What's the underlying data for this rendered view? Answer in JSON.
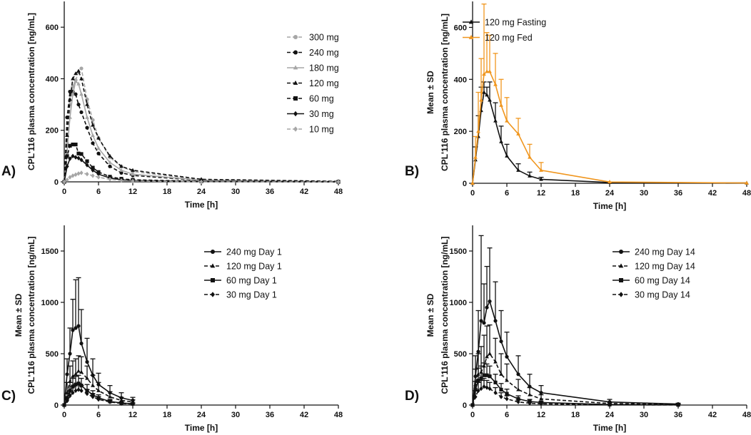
{
  "chart_data": [
    {
      "type": "line",
      "panel_label": "A)",
      "xlabel": "Time [h]",
      "ylabel": "CPL'116 plasma concentration [ng/mL]",
      "ylabel2": "",
      "xlim": [
        0,
        48
      ],
      "ylim": [
        0,
        700
      ],
      "xticks": [
        0,
        6,
        12,
        18,
        24,
        30,
        36,
        42,
        48
      ],
      "yticks": [
        0,
        200,
        400,
        600
      ],
      "error_bars": false,
      "series": [
        {
          "name": "300 mg",
          "color": "#a6a6a6",
          "dash": "dash",
          "marker": "circle",
          "x": [
            0,
            0.5,
            1,
            1.5,
            2,
            2.5,
            3,
            4,
            5,
            6,
            8,
            10,
            12,
            24,
            48
          ],
          "y": [
            0,
            150,
            300,
            370,
            395,
            425,
            440,
            320,
            240,
            170,
            95,
            60,
            40,
            8,
            2
          ]
        },
        {
          "name": "240 mg",
          "color": "#111111",
          "dash": "dash",
          "marker": "circle",
          "x": [
            0,
            0.5,
            1,
            1.5,
            2,
            2.5,
            3,
            4,
            5,
            6,
            8,
            10,
            12,
            24,
            48
          ],
          "y": [
            0,
            250,
            350,
            350,
            340,
            300,
            270,
            210,
            150,
            110,
            60,
            35,
            25,
            5,
            1
          ]
        },
        {
          "name": "180 mg",
          "color": "#a6a6a6",
          "dash": "solid",
          "marker": "triangle",
          "x": [
            0,
            0.5,
            1,
            1.5,
            2,
            2.5,
            3,
            4,
            5,
            6,
            8,
            10,
            12,
            24,
            48
          ],
          "y": [
            0,
            120,
            250,
            340,
            390,
            380,
            340,
            250,
            180,
            130,
            75,
            45,
            30,
            6,
            1
          ]
        },
        {
          "name": "120 mg",
          "color": "#111111",
          "dash": "dash",
          "marker": "triangle",
          "x": [
            0,
            0.5,
            1,
            1.5,
            2,
            2.5,
            3,
            4,
            5,
            6,
            8,
            10,
            12,
            24,
            48
          ],
          "y": [
            0,
            180,
            320,
            400,
            420,
            430,
            400,
            300,
            220,
            170,
            100,
            60,
            45,
            10,
            2
          ]
        },
        {
          "name": "60 mg",
          "color": "#111111",
          "dash": "dash",
          "marker": "square",
          "x": [
            0,
            0.5,
            1,
            1.5,
            2,
            2.5,
            3,
            4,
            5,
            6,
            8,
            10,
            12,
            24,
            48
          ],
          "y": [
            0,
            100,
            140,
            145,
            145,
            110,
            108,
            80,
            55,
            38,
            20,
            12,
            8,
            2,
            0
          ]
        },
        {
          "name": "30 mg",
          "color": "#111111",
          "dash": "solid",
          "marker": "diamond",
          "x": [
            0,
            0.5,
            1,
            1.5,
            2,
            2.5,
            3,
            4,
            5,
            6,
            8,
            10,
            12,
            24,
            48
          ],
          "y": [
            0,
            60,
            90,
            100,
            95,
            92,
            85,
            65,
            45,
            30,
            15,
            8,
            5,
            1,
            0
          ]
        },
        {
          "name": "10 mg",
          "color": "#a6a6a6",
          "dash": "dash",
          "marker": "diamond",
          "x": [
            0,
            0.5,
            1,
            1.5,
            2,
            2.5,
            3,
            4,
            5,
            6,
            8,
            10,
            12,
            24,
            48
          ],
          "y": [
            0,
            8,
            18,
            24,
            28,
            32,
            35,
            30,
            24,
            18,
            10,
            5,
            3,
            0,
            0
          ]
        }
      ]
    },
    {
      "type": "line",
      "panel_label": "B)",
      "xlabel": "Time [h]",
      "ylabel": "CPL'116 plasma concentration [ng/mL]",
      "ylabel2": "Mean ± SD",
      "xlim": [
        0,
        48
      ],
      "ylim": [
        0,
        700
      ],
      "xticks": [
        0,
        6,
        12,
        18,
        24,
        30,
        36,
        42,
        48
      ],
      "yticks": [
        0,
        200,
        400,
        600
      ],
      "error_bars": true,
      "series": [
        {
          "name": "120 mg Fasting",
          "color": "#111111",
          "dash": "solid",
          "marker": "triangle",
          "x": [
            0,
            0.5,
            1,
            1.5,
            2,
            2.5,
            3,
            4,
            5,
            6,
            8,
            10,
            12,
            24,
            48
          ],
          "y": [
            0,
            90,
            180,
            280,
            350,
            340,
            320,
            240,
            160,
            105,
            50,
            28,
            15,
            3,
            1
          ],
          "err": [
            0,
            50,
            80,
            90,
            40,
            30,
            70,
            70,
            60,
            45,
            25,
            15,
            8,
            0,
            0
          ]
        },
        {
          "name": "120 mg Fed",
          "color": "#f0961e",
          "dash": "solid",
          "marker": "triangle",
          "x": [
            0,
            0.5,
            1,
            1.5,
            2,
            2.5,
            3,
            4,
            5,
            6,
            8,
            10,
            12,
            24,
            48
          ],
          "y": [
            0,
            100,
            200,
            320,
            420,
            430,
            430,
            380,
            300,
            240,
            190,
            100,
            50,
            5,
            1
          ],
          "err": [
            0,
            80,
            150,
            160,
            270,
            150,
            140,
            120,
            100,
            90,
            60,
            50,
            30,
            0,
            0
          ]
        }
      ]
    },
    {
      "type": "line",
      "panel_label": "C)",
      "xlabel": "Time [h]",
      "ylabel": "CPL'116 plasma concentration [ng/mL]",
      "ylabel2": "Mean ± SD",
      "xlim": [
        0,
        48
      ],
      "ylim": [
        0,
        1750
      ],
      "xticks": [
        0,
        6,
        12,
        18,
        24,
        30,
        36,
        42,
        48
      ],
      "yticks": [
        0,
        500,
        1000,
        1500
      ],
      "error_bars": true,
      "series": [
        {
          "name": "240 mg Day 1",
          "color": "#111111",
          "dash": "solid",
          "marker": "circle",
          "x": [
            0,
            0.5,
            1,
            1.5,
            2,
            2.5,
            3,
            4,
            5,
            6,
            8,
            10,
            12
          ],
          "y": [
            0,
            300,
            500,
            730,
            750,
            770,
            600,
            420,
            290,
            200,
            120,
            70,
            45
          ],
          "err": [
            0,
            150,
            250,
            300,
            470,
            470,
            330,
            230,
            160,
            110,
            70,
            50,
            30
          ]
        },
        {
          "name": "120 mg Day 1",
          "color": "#111111",
          "dash": "dash",
          "marker": "triangle",
          "x": [
            0,
            0.5,
            1,
            1.5,
            2,
            2.5,
            3,
            4,
            5,
            6,
            8,
            10,
            12
          ],
          "y": [
            0,
            120,
            230,
            280,
            300,
            330,
            320,
            260,
            190,
            140,
            80,
            45,
            30
          ],
          "err": [
            0,
            100,
            150,
            150,
            150,
            150,
            150,
            120,
            100,
            80,
            50,
            30,
            20
          ]
        },
        {
          "name": "60 mg Day 1",
          "color": "#111111",
          "dash": "solid",
          "marker": "square",
          "x": [
            0,
            0.5,
            1,
            1.5,
            2,
            2.5,
            3,
            4,
            5,
            6,
            8,
            10,
            12
          ],
          "y": [
            0,
            60,
            140,
            180,
            200,
            210,
            190,
            140,
            100,
            70,
            35,
            20,
            12
          ],
          "err": [
            0,
            50,
            80,
            80,
            80,
            80,
            70,
            60,
            40,
            30,
            20,
            10,
            8
          ]
        },
        {
          "name": "30 mg Day 1",
          "color": "#111111",
          "dash": "dash",
          "marker": "diamond",
          "x": [
            0,
            0.5,
            1,
            1.5,
            2,
            2.5,
            3,
            4,
            5,
            6,
            8,
            10,
            12
          ],
          "y": [
            0,
            40,
            90,
            120,
            140,
            150,
            140,
            110,
            80,
            55,
            30,
            15,
            10
          ],
          "err": [
            0,
            30,
            50,
            60,
            60,
            60,
            50,
            40,
            30,
            25,
            15,
            10,
            6
          ]
        }
      ]
    },
    {
      "type": "line",
      "panel_label": "D)",
      "xlabel": "Time [h]",
      "ylabel": "CPL'116 plasma concentration [ng/mL]",
      "ylabel2": "Mean ± SD",
      "xlim": [
        0,
        48
      ],
      "ylim": [
        0,
        1750
      ],
      "xticks": [
        0,
        6,
        12,
        18,
        24,
        30,
        36,
        42,
        48
      ],
      "yticks": [
        0,
        500,
        1000,
        1500
      ],
      "error_bars": true,
      "series": [
        {
          "name": "240 mg Day 14",
          "color": "#111111",
          "dash": "solid",
          "marker": "circle",
          "x": [
            0,
            0.5,
            1,
            1.5,
            2,
            2.5,
            3,
            4,
            5,
            6,
            8,
            10,
            12,
            24,
            36
          ],
          "y": [
            0,
            280,
            520,
            820,
            800,
            950,
            1010,
            820,
            620,
            470,
            300,
            180,
            120,
            30,
            10
          ],
          "err": [
            0,
            200,
            400,
            830,
            380,
            400,
            520,
            380,
            300,
            240,
            180,
            120,
            70,
            25,
            8
          ]
        },
        {
          "name": "120 mg Day 14",
          "color": "#111111",
          "dash": "dash",
          "marker": "triangle",
          "x": [
            0,
            0.5,
            1,
            1.5,
            2,
            2.5,
            3,
            4,
            5,
            6,
            8,
            10,
            12,
            24,
            36
          ],
          "y": [
            0,
            200,
            300,
            320,
            380,
            470,
            500,
            420,
            300,
            240,
            150,
            100,
            60,
            15,
            5
          ],
          "err": [
            0,
            150,
            200,
            250,
            300,
            300,
            280,
            230,
            200,
            160,
            100,
            70,
            40,
            10,
            4
          ]
        },
        {
          "name": "60 mg Day 14",
          "color": "#111111",
          "dash": "solid",
          "marker": "square",
          "x": [
            0,
            0.5,
            1,
            1.5,
            2,
            2.5,
            3,
            4,
            5,
            6,
            8,
            10,
            12,
            24,
            36
          ],
          "y": [
            0,
            150,
            240,
            260,
            290,
            290,
            280,
            220,
            150,
            110,
            60,
            35,
            25,
            5,
            2
          ],
          "err": [
            0,
            80,
            120,
            120,
            120,
            110,
            100,
            80,
            60,
            45,
            30,
            20,
            12,
            4,
            2
          ]
        },
        {
          "name": "30 mg Day 14",
          "color": "#111111",
          "dash": "dash",
          "marker": "diamond",
          "x": [
            0,
            0.5,
            1,
            1.5,
            2,
            2.5,
            3,
            4,
            5,
            6,
            8,
            10,
            12,
            24,
            36
          ],
          "y": [
            0,
            80,
            140,
            160,
            180,
            170,
            160,
            120,
            80,
            60,
            30,
            18,
            12,
            3,
            1
          ],
          "err": [
            0,
            60,
            80,
            80,
            80,
            70,
            60,
            50,
            40,
            30,
            20,
            10,
            8,
            3,
            1
          ]
        }
      ]
    }
  ]
}
